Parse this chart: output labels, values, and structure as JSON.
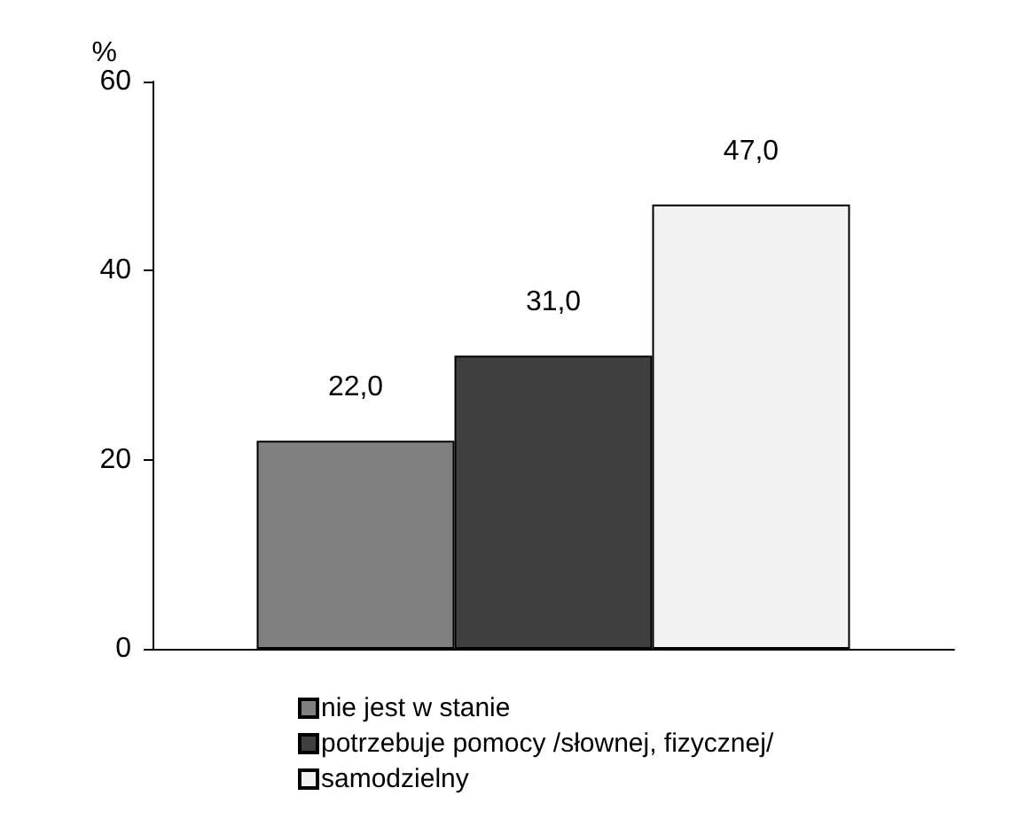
{
  "chart_data": {
    "type": "bar",
    "ylabel": "%",
    "categories": [
      null
    ],
    "series": [
      {
        "name": "nie jest w stanie",
        "color": "#808080",
        "values": [
          22
        ],
        "value_labels": [
          "22,0"
        ]
      },
      {
        "name": "potrzebuje pomocy /słownej, fizycznej/",
        "color": "#404040",
        "values": [
          31
        ],
        "value_labels": [
          "31,0"
        ]
      },
      {
        "name": "samodzielny",
        "color": "#f2f2f2",
        "values": [
          47
        ],
        "value_labels": [
          "47,0"
        ]
      }
    ],
    "ylim": [
      0,
      60
    ],
    "yticks": [
      0,
      20,
      40,
      60
    ],
    "grid": false,
    "legend": "bottom"
  }
}
